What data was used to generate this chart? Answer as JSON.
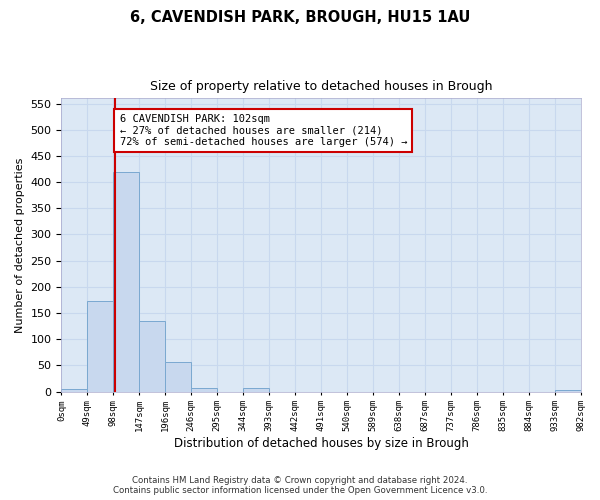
{
  "title": "6, CAVENDISH PARK, BROUGH, HU15 1AU",
  "subtitle": "Size of property relative to detached houses in Brough",
  "xlabel": "Distribution of detached houses by size in Brough",
  "ylabel": "Number of detached properties",
  "bar_left_edges": [
    0,
    49,
    98,
    147,
    196,
    245,
    294,
    343,
    392,
    441,
    490,
    539,
    588,
    637,
    686,
    735,
    784,
    833,
    882,
    931
  ],
  "bar_heights": [
    5,
    172,
    420,
    134,
    57,
    6,
    0,
    6,
    0,
    0,
    0,
    0,
    0,
    0,
    0,
    0,
    0,
    0,
    0,
    3
  ],
  "bin_width": 49,
  "bar_color": "#c8d8ee",
  "bar_edge_color": "#7aa8d0",
  "tick_labels": [
    "0sqm",
    "49sqm",
    "98sqm",
    "147sqm",
    "196sqm",
    "246sqm",
    "295sqm",
    "344sqm",
    "393sqm",
    "442sqm",
    "491sqm",
    "540sqm",
    "589sqm",
    "638sqm",
    "687sqm",
    "737sqm",
    "786sqm",
    "835sqm",
    "884sqm",
    "933sqm",
    "982sqm"
  ],
  "property_value": 102,
  "vline_color": "#cc0000",
  "annotation_box_text": "6 CAVENDISH PARK: 102sqm\n← 27% of detached houses are smaller (214)\n72% of semi-detached houses are larger (574) →",
  "annotation_box_color": "#cc0000",
  "annotation_box_bg": "#ffffff",
  "ylim": [
    0,
    560
  ],
  "yticks": [
    0,
    50,
    100,
    150,
    200,
    250,
    300,
    350,
    400,
    450,
    500,
    550
  ],
  "grid_color": "#c8d8ee",
  "bg_color": "#dce8f5",
  "fig_bg_color": "#ffffff",
  "footer_line1": "Contains HM Land Registry data © Crown copyright and database right 2024.",
  "footer_line2": "Contains public sector information licensed under the Open Government Licence v3.0."
}
